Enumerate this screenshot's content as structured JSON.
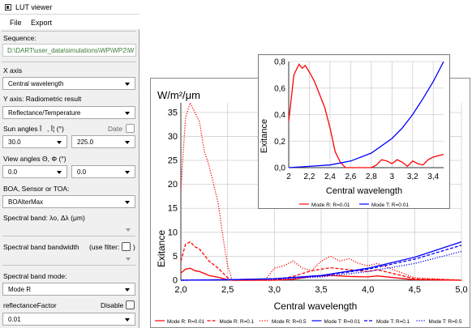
{
  "window": {
    "title": "LUT viewer"
  },
  "menu": {
    "file": "File",
    "export": "Export"
  },
  "sequence": {
    "label": "Sequence:",
    "path": "D:\\DART\\user_data\\simulations\\WP\\WP2\\W"
  },
  "x_axis": {
    "label": "X axis",
    "value": "Central wavelength"
  },
  "y_axis": {
    "label": "Y axis: Radiometric result",
    "value": "Reflectance/Temperature"
  },
  "sun_angles": {
    "label": "Sun angles Î, Î¦ (°)",
    "date_label": "Date",
    "zenith": "30.0",
    "azimuth": "225.0"
  },
  "view_angles": {
    "label": "View angles Θ, Φ  (°)",
    "zenith": "0.0",
    "azimuth": "0.0"
  },
  "boa": {
    "label": "BOA, Sensor or TOA:",
    "value": "BOAlterMax"
  },
  "spectral_band": {
    "label": "Spectral band: λo, Δλ (μm)"
  },
  "bandwidth": {
    "label": "Spectral band bandwidth",
    "filter_label": "(use filter:",
    "filter_close": ")"
  },
  "band_mode": {
    "label": "Spectral band mode:",
    "value": "Mode R"
  },
  "reflectance_factor": {
    "label": "reflectanceFactor",
    "disable_label": "Disable",
    "value": "0.01"
  },
  "colors": {
    "red": "#ff0000",
    "blue": "#0000ff"
  },
  "chart_data": [
    {
      "type": "line",
      "units_label": "W/m²/μm",
      "xlabel": "Central wavelength",
      "ylabel": "Exitance",
      "xlim": [
        2.0,
        5.0
      ],
      "ylim": [
        0,
        37
      ],
      "xticks": [
        "2,0",
        "2,5",
        "3,0",
        "3,5",
        "4,0",
        "4,5",
        "5,0"
      ],
      "yticks": [
        "0",
        "5",
        "10",
        "15",
        "20",
        "25",
        "30",
        "35"
      ],
      "legend_position": "bottom",
      "series": [
        {
          "name": "Mode R: R=0.01",
          "color": "#ff0000",
          "dash": "solid",
          "x": [
            2.0,
            2.05,
            2.1,
            2.15,
            2.2,
            2.3,
            2.4,
            2.5,
            2.55,
            3.0,
            3.2,
            3.4,
            3.6,
            3.8,
            4.0,
            4.1,
            4.5,
            5.0
          ],
          "y": [
            1.5,
            2.3,
            2.5,
            2.0,
            1.8,
            1.0,
            0.6,
            0.1,
            0.0,
            0.0,
            0.2,
            0.8,
            1.0,
            0.8,
            0.7,
            0.9,
            0.1,
            0.0
          ]
        },
        {
          "name": "Mode R: R=0.1",
          "color": "#ff0000",
          "dash": "dashed",
          "x": [
            2.0,
            2.05,
            2.1,
            2.15,
            2.2,
            2.3,
            2.4,
            2.45,
            2.5,
            2.55,
            3.0,
            3.2,
            3.4,
            3.6,
            3.8,
            4.0,
            4.1,
            4.5,
            5.0
          ],
          "y": [
            4.0,
            7.5,
            8.0,
            7.0,
            6.5,
            4.0,
            2.5,
            1.5,
            0.5,
            0.0,
            0.0,
            0.8,
            2.0,
            2.6,
            2.2,
            1.8,
            2.2,
            0.3,
            0.0
          ]
        },
        {
          "name": "Mode R: R=0.5",
          "color": "#ff0000",
          "dash": "dotted",
          "x": [
            2.0,
            2.05,
            2.1,
            2.15,
            2.2,
            2.25,
            2.3,
            2.35,
            2.4,
            2.45,
            2.5,
            2.55,
            2.9,
            3.0,
            3.1,
            3.2,
            3.3,
            3.4,
            3.5,
            3.6,
            3.7,
            3.8,
            3.9,
            4.0,
            4.1,
            4.5,
            5.0
          ],
          "y": [
            19.0,
            34.0,
            37.0,
            35.0,
            33.0,
            27.0,
            24.0,
            20.0,
            16.0,
            9.0,
            3.0,
            0.0,
            0.0,
            2.5,
            3.0,
            4.0,
            2.5,
            2.0,
            4.0,
            5.0,
            4.0,
            4.5,
            3.5,
            3.0,
            3.5,
            0.5,
            0.0
          ]
        },
        {
          "name": "Mode T: R=0.01",
          "color": "#0000ff",
          "dash": "solid",
          "x": [
            2.0,
            2.5,
            3.0,
            3.5,
            4.0,
            4.5,
            5.0
          ],
          "y": [
            0.0,
            0.1,
            0.3,
            1.0,
            2.5,
            4.8,
            8.0
          ]
        },
        {
          "name": "Mode T: R=0.1",
          "color": "#0000ff",
          "dash": "dashed",
          "x": [
            2.0,
            2.5,
            3.0,
            3.5,
            4.0,
            4.5,
            5.0
          ],
          "y": [
            0.0,
            0.1,
            0.3,
            0.9,
            2.3,
            4.4,
            7.3
          ]
        },
        {
          "name": "Mode T: R=0.5",
          "color": "#0000ff",
          "dash": "dotted",
          "x": [
            2.0,
            2.5,
            3.0,
            3.5,
            4.0,
            4.5,
            5.0
          ],
          "y": [
            0.0,
            0.1,
            0.2,
            0.7,
            1.8,
            3.5,
            6.0
          ]
        }
      ]
    },
    {
      "type": "line",
      "xlabel": "Central wavelength",
      "ylabel": "Exitance",
      "xlim": [
        2.0,
        3.5
      ],
      "ylim": [
        0,
        0.8
      ],
      "xticks": [
        "2",
        "2,2",
        "2,4",
        "2,6",
        "2,8",
        "3",
        "3,2",
        "3,4"
      ],
      "yticks": [
        "0,0",
        "0,2",
        "0,4",
        "0,6",
        "0,8"
      ],
      "legend_position": "bottom",
      "series": [
        {
          "name": "Mode R: R=0.01",
          "color": "#ff0000",
          "dash": "solid",
          "x": [
            2.0,
            2.05,
            2.1,
            2.13,
            2.16,
            2.2,
            2.25,
            2.3,
            2.35,
            2.4,
            2.45,
            2.5,
            2.55,
            2.8,
            2.85,
            2.9,
            2.95,
            3.0,
            3.05,
            3.1,
            3.15,
            3.2,
            3.25,
            3.3,
            3.35,
            3.4,
            3.45,
            3.5
          ],
          "y": [
            0.35,
            0.7,
            0.78,
            0.75,
            0.77,
            0.72,
            0.65,
            0.55,
            0.45,
            0.3,
            0.12,
            0.04,
            0.0,
            0.0,
            0.02,
            0.06,
            0.05,
            0.03,
            0.06,
            0.04,
            0.01,
            0.05,
            0.03,
            0.02,
            0.06,
            0.08,
            0.09,
            0.1
          ]
        },
        {
          "name": "Mode T: R=0.01",
          "color": "#0000ff",
          "dash": "solid",
          "x": [
            2.0,
            2.2,
            2.4,
            2.6,
            2.8,
            3.0,
            3.1,
            3.2,
            3.3,
            3.4,
            3.5
          ],
          "y": [
            0.0,
            0.01,
            0.02,
            0.05,
            0.11,
            0.22,
            0.3,
            0.4,
            0.52,
            0.65,
            0.8
          ]
        }
      ]
    }
  ]
}
